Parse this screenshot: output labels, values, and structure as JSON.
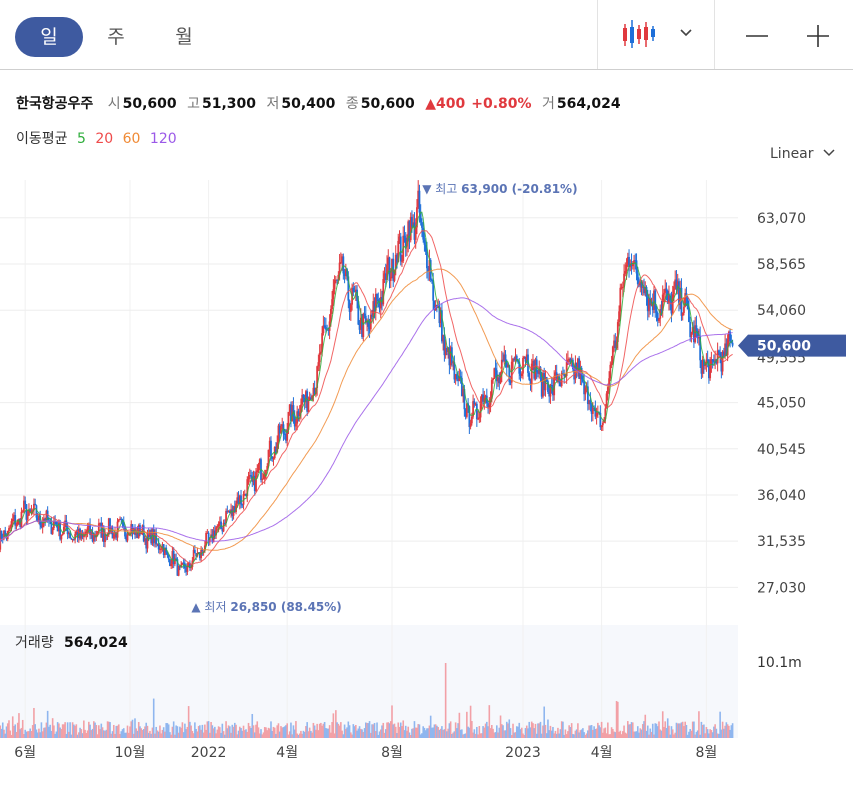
{
  "tabs": [
    {
      "label": "일",
      "active": true
    },
    {
      "label": "주",
      "active": false
    },
    {
      "label": "월",
      "active": false
    }
  ],
  "toolbar": {
    "chart_type_icon": "candlestick-icon",
    "dropdown_icon": "chevron-down-icon",
    "zoom_out_icon": "minus-icon",
    "zoom_in_icon": "plus-icon"
  },
  "stock": {
    "name": "한국항공우주",
    "open_label": "시",
    "open": "50,600",
    "high_label": "고",
    "high": "51,300",
    "low_label": "저",
    "low": "50,400",
    "close_label": "종",
    "close": "50,600",
    "change": "▲400",
    "change_pct": "+0.80%",
    "volume_label": "거",
    "volume": "564,024"
  },
  "moving_average": {
    "label": "이동평균",
    "periods": [
      "5",
      "20",
      "60",
      "120"
    ],
    "colors": [
      "#2fae3c",
      "#ef4b4b",
      "#f08a35",
      "#9b59e8"
    ]
  },
  "scale": {
    "label": "Linear",
    "icon": "chevron-down-icon"
  },
  "colors": {
    "accent": "#3e5aa0",
    "up": "#e0393e",
    "down": "#1e6fd9",
    "up_volume": "#f2a0a6",
    "down_volume": "#8fb6ef",
    "annotation": "#5b74b5"
  },
  "chart_data": {
    "type": "candlestick",
    "y_ticks": [
      63070,
      58565,
      54060,
      45050,
      40545,
      36040,
      31535,
      27030
    ],
    "y_tick_labels": [
      "63,070",
      "58,565",
      "54,060",
      "45,050",
      "40,545",
      "36,040",
      "31,535",
      "27,030"
    ],
    "hidden_tick_label": "49,555",
    "ylim": [
      25800,
      65000
    ],
    "x_tick_labels": [
      "6월",
      "10월",
      "2022",
      "4월",
      "8월",
      "2023",
      "4월",
      "8월"
    ],
    "x_tick_months": [
      "2021-06",
      "2021-10",
      "2022-01",
      "2022-04",
      "2022-08",
      "2023-01",
      "2023-04",
      "2023-08"
    ],
    "x_start": "2021-05",
    "x_end": "2023-09",
    "price_path": [
      [
        "2021-05",
        31500
      ],
      [
        "2021-06",
        34500
      ],
      [
        "2021-07",
        33200
      ],
      [
        "2021-08",
        32000
      ],
      [
        "2021-09",
        32500
      ],
      [
        "2021-10",
        32800
      ],
      [
        "2021-11",
        31500
      ],
      [
        "2021-12",
        28500
      ],
      [
        "2022-01",
        31500
      ],
      [
        "2022-02",
        35000
      ],
      [
        "2022-03",
        38500
      ],
      [
        "2022-04",
        43000
      ],
      [
        "2022-05",
        46500
      ],
      [
        "2022-06",
        58000
      ],
      [
        "2022-07",
        52000
      ],
      [
        "2022-08",
        58500
      ],
      [
        "2022-09",
        63500
      ],
      [
        "2022-10",
        50500
      ],
      [
        "2022-11",
        43500
      ],
      [
        "2022-12",
        47500
      ],
      [
        "2023-01",
        49500
      ],
      [
        "2023-02",
        46500
      ],
      [
        "2023-03",
        48500
      ],
      [
        "2023-04",
        42500
      ],
      [
        "2023-05",
        59500
      ],
      [
        "2023-06",
        54500
      ],
      [
        "2023-07",
        55500
      ],
      [
        "2023-08",
        48200
      ],
      [
        "2023-09",
        50600
      ]
    ],
    "last_price": 50600,
    "last_price_label": "50,600",
    "high_annotation": {
      "label": "최고",
      "value_text": "63,900 (-20.81%)",
      "value": 63900,
      "date": "2022-09"
    },
    "low_annotation": {
      "label": "최저",
      "value_text": "26,850 (88.45%)",
      "value": 26850,
      "date": "2021-12"
    },
    "volume": {
      "label": "거래량",
      "value": "564,024",
      "tick_label": "10.1m",
      "tick_value": 10100000
    }
  }
}
